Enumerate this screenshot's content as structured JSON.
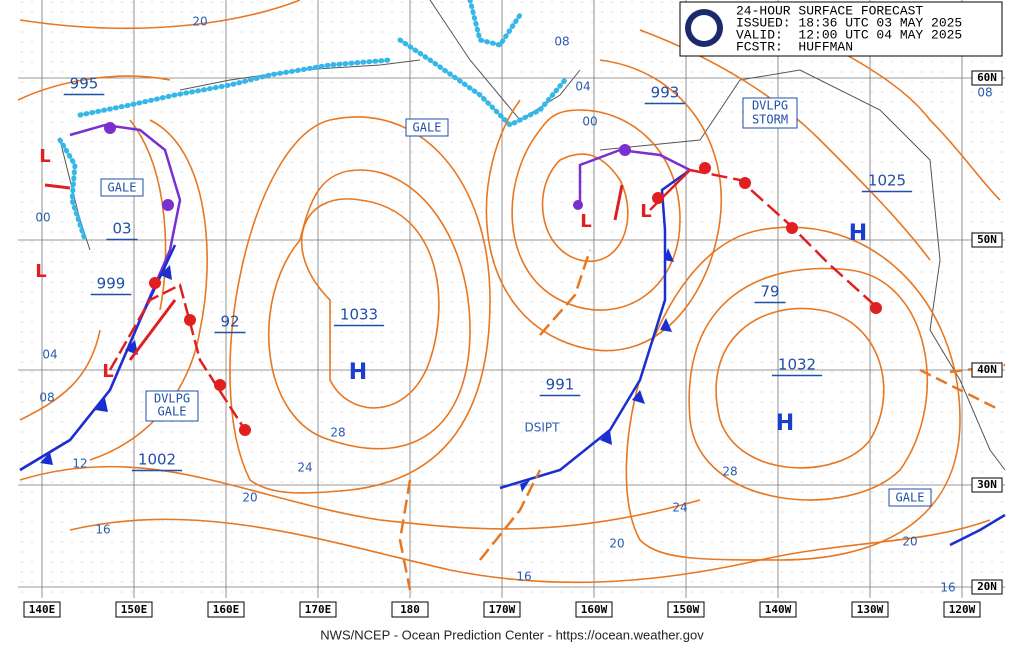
{
  "header": {
    "title": "24-HOUR SURFACE FORECAST",
    "issued": "ISSUED: 18:36 UTC 03 MAY 2025",
    "valid": "VALID:  12:00 UTC 04 MAY 2025",
    "forecaster": "FCSTR:  HUFFMAN"
  },
  "footer": "NWS/NCEP - Ocean Prediction Center - https://ocean.weather.gov",
  "longitudes": [
    "140E",
    "150E",
    "160E",
    "170E",
    "180",
    "170W",
    "160W",
    "150W",
    "140W",
    "130W",
    "120W"
  ],
  "latitudes": [
    "60N",
    "50N",
    "40N",
    "30N",
    "20N"
  ],
  "pressure_labels": [
    "995",
    "03",
    "999",
    "1002",
    "92",
    "1033",
    "991",
    "993",
    "1025",
    "79",
    "1032"
  ],
  "warnings": [
    [
      "GALE"
    ],
    [
      "GALE"
    ],
    [
      "DVLPG",
      "GALE"
    ],
    [
      "DVLPG",
      "STORM"
    ],
    [
      "GALE"
    ]
  ],
  "isobar_labels": [
    "20",
    "08",
    "04",
    "00",
    "00",
    "04",
    "08",
    "12",
    "16",
    "20",
    "24",
    "28",
    "16",
    "20",
    "24",
    "28",
    "20",
    "16",
    "08"
  ],
  "dissipating": "DSIPT",
  "highs": [
    "H",
    "H",
    "H"
  ],
  "lows": [
    "L",
    "L",
    "L",
    "L",
    "L"
  ]
}
